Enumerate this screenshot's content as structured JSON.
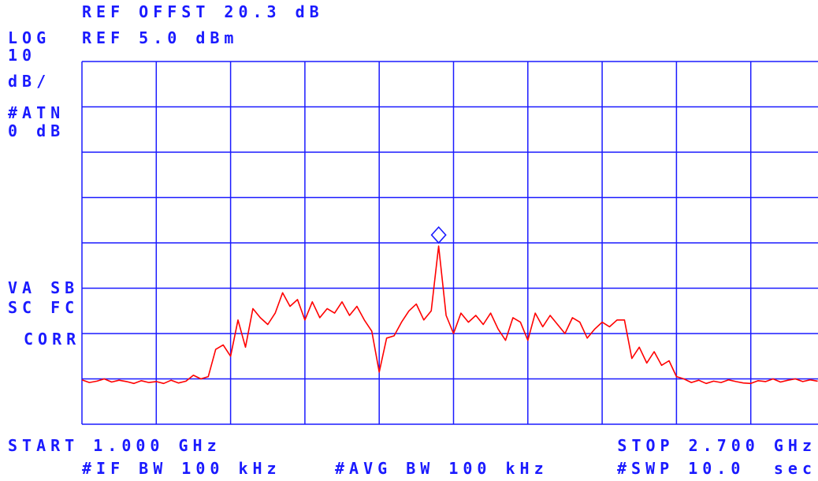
{
  "chart_data": {
    "type": "line",
    "annotations": [
      "REF OFFST 20.3 dB",
      "REF 5.0 dBm",
      "LOG",
      "10",
      "dB/",
      "#ATN",
      "0 dB",
      "VA SB",
      "SC FC",
      "CORR",
      "START 1.000 GHz",
      "STOP 2.700 GHz",
      "#IF BW 100 kHz",
      "#AVG BW 100 kHz",
      "#SWP 10.0",
      "sec"
    ],
    "xlim": [
      1.0,
      2.7
    ],
    "ylim": [
      -75,
      5
    ],
    "grid": true,
    "color": "#ff0000",
    "grid_color": "#1a1aff",
    "text_color": "#1a1aff",
    "x": [
      1.0,
      1.017,
      1.034,
      1.051,
      1.068,
      1.085,
      1.102,
      1.119,
      1.136,
      1.153,
      1.17,
      1.187,
      1.204,
      1.221,
      1.238,
      1.255,
      1.272,
      1.289,
      1.306,
      1.323,
      1.34,
      1.357,
      1.374,
      1.391,
      1.408,
      1.425,
      1.442,
      1.459,
      1.476,
      1.493,
      1.51,
      1.527,
      1.544,
      1.561,
      1.578,
      1.595,
      1.612,
      1.629,
      1.646,
      1.663,
      1.68,
      1.697,
      1.714,
      1.731,
      1.748,
      1.765,
      1.782,
      1.799,
      1.816,
      1.833,
      1.85,
      1.867,
      1.884,
      1.901,
      1.918,
      1.935,
      1.952,
      1.969,
      1.986,
      2.003,
      2.02,
      2.037,
      2.054,
      2.071,
      2.088,
      2.105,
      2.122,
      2.139,
      2.156,
      2.173,
      2.19,
      2.207,
      2.224,
      2.241,
      2.258,
      2.275,
      2.292,
      2.309,
      2.326,
      2.343,
      2.36,
      2.377,
      2.394,
      2.411,
      2.428,
      2.445,
      2.462,
      2.479,
      2.496,
      2.513,
      2.53,
      2.547,
      2.564,
      2.581,
      2.598,
      2.615,
      2.632,
      2.649,
      2.666,
      2.683
    ],
    "values": [
      -65.2,
      -65.8,
      -65.5,
      -65.0,
      -65.7,
      -65.3,
      -65.6,
      -66.0,
      -65.4,
      -65.8,
      -65.6,
      -66.0,
      -65.3,
      -65.9,
      -65.5,
      -64.2,
      -65.0,
      -64.5,
      -58.5,
      -57.5,
      -60.0,
      -52.0,
      -58.0,
      -49.5,
      -51.5,
      -53.0,
      -50.5,
      -46.0,
      -49.0,
      -47.5,
      -52.0,
      -48.0,
      -51.5,
      -49.5,
      -50.5,
      -48.0,
      -51.0,
      -49.0,
      -52.0,
      -54.5,
      -63.5,
      -56.0,
      -55.5,
      -52.5,
      -50.0,
      -48.5,
      -52.0,
      -50.0,
      -35.7,
      -51.0,
      -55.0,
      -50.5,
      -52.5,
      -51.0,
      -53.0,
      -50.5,
      -54.0,
      -56.5,
      -51.5,
      -52.5,
      -56.5,
      -50.5,
      -53.5,
      -51.0,
      -53.0,
      -55.0,
      -51.5,
      -52.5,
      -56.0,
      -54.0,
      -52.5,
      -53.5,
      -52.0,
      -52.0,
      -60.5,
      -58.0,
      -61.5,
      -59.0,
      -62.0,
      -61.0,
      -64.5,
      -65.0,
      -65.8,
      -65.3,
      -66.0,
      -65.5,
      -65.8,
      -65.2,
      -65.6,
      -65.9,
      -66.0,
      -65.4,
      -65.6,
      -65.0,
      -65.7,
      -65.3,
      -65.0,
      -65.6,
      -65.2,
      -65.5
    ],
    "marker": {
      "x": 1.816,
      "value": -35.7
    }
  }
}
